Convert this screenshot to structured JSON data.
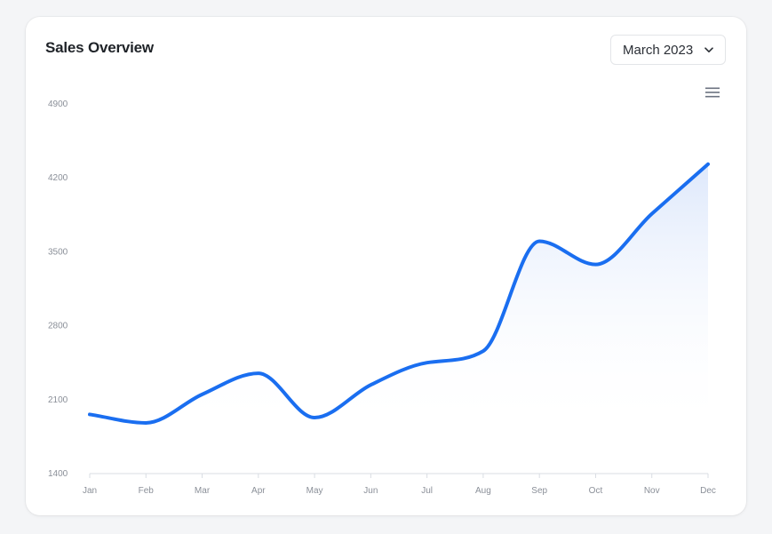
{
  "card": {
    "title": "Sales Overview",
    "selected_month": "March 2023"
  },
  "icons": {
    "menu": "hamburger-menu-icon",
    "dropdown": "chevron-down-icon"
  },
  "colors": {
    "line": "#1a6ef0",
    "area_top": "#dce7fb",
    "axis": "#d9dde3",
    "tick_text": "#8a8f98"
  },
  "chart_data": {
    "type": "area",
    "title": "Sales Overview",
    "categories": [
      "Jan",
      "Feb",
      "Mar",
      "Apr",
      "May",
      "Jun",
      "Jul",
      "Aug",
      "Sep",
      "Oct",
      "Nov",
      "Dec"
    ],
    "series": [
      {
        "values": [
          1960,
          1880,
          2150,
          2350,
          1930,
          2240,
          2450,
          2560,
          3600,
          3380,
          3860,
          4330
        ]
      }
    ],
    "y_ticks": [
      1400,
      2100,
      2800,
      3500,
      4200,
      4900
    ],
    "ylim": [
      1400,
      4900
    ],
    "grid": false,
    "legend": "none"
  }
}
